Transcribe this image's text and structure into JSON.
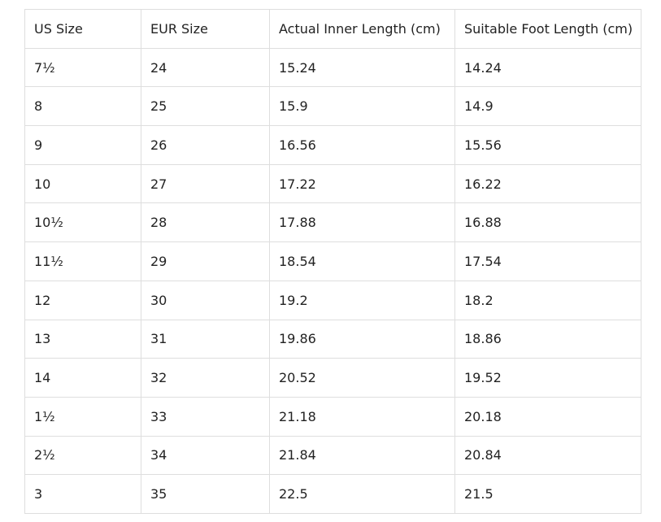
{
  "table": {
    "headers": [
      "US Size",
      "EUR Size",
      "Actual Inner Length (cm)",
      "Suitable Foot Length (cm)"
    ],
    "rows": [
      [
        "7½",
        "24",
        "15.24",
        "14.24"
      ],
      [
        "8",
        "25",
        "15.9",
        "14.9"
      ],
      [
        "9",
        "26",
        "16.56",
        "15.56"
      ],
      [
        "10",
        "27",
        "17.22",
        "16.22"
      ],
      [
        "10½",
        "28",
        "17.88",
        "16.88"
      ],
      [
        "11½",
        "29",
        "18.54",
        "17.54"
      ],
      [
        "12",
        "30",
        "19.2",
        "18.2"
      ],
      [
        "13",
        "31",
        "19.86",
        "18.86"
      ],
      [
        "14",
        "32",
        "20.52",
        "19.52"
      ],
      [
        "1½",
        "33",
        "21.18",
        "20.18"
      ],
      [
        "2½",
        "34",
        "21.84",
        "20.84"
      ],
      [
        "3",
        "35",
        "22.5",
        "21.5"
      ]
    ]
  }
}
